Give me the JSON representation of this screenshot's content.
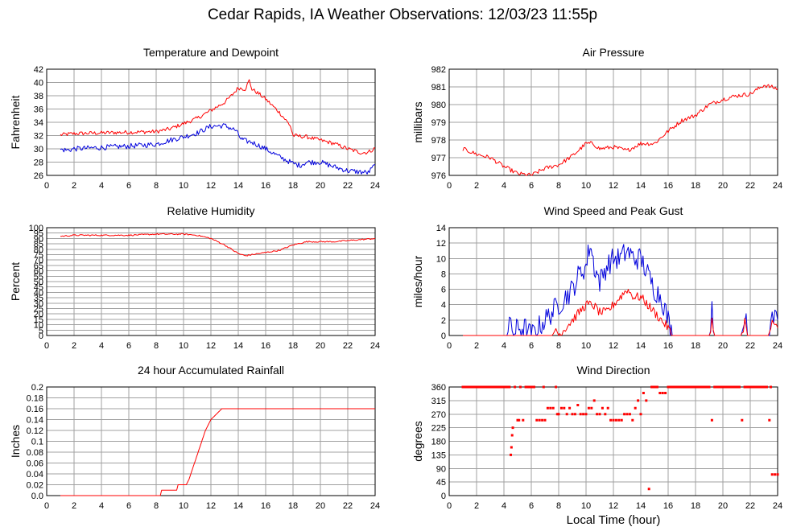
{
  "page": {
    "title": "Cedar Rapids, IA Weather Observations: 12/03/23 11:55p",
    "xlabel": "Local Time (hour)"
  },
  "colors": {
    "red": "#ff0000",
    "blue": "#0000dd",
    "grid": "#a0a0a0"
  },
  "chart_data": [
    {
      "id": "temp",
      "type": "line",
      "title": "Temperature and Dewpoint",
      "ylabel": "Fahrenheit",
      "ylim": [
        26,
        42
      ],
      "yticks": [
        26,
        28,
        30,
        32,
        34,
        36,
        38,
        40,
        42
      ],
      "xlim": [
        0,
        24
      ],
      "xticks": [
        0,
        2,
        4,
        6,
        8,
        10,
        12,
        14,
        16,
        18,
        20,
        22,
        24
      ],
      "grid": true,
      "series": [
        {
          "color": "#ff0000",
          "noise": 0.3,
          "x": [
            1,
            2,
            4,
            6,
            8,
            9,
            10,
            11,
            12,
            13,
            13.5,
            14,
            14.5,
            14.8,
            15,
            15.5,
            16,
            17,
            17.8,
            18,
            19,
            20,
            21,
            22,
            23,
            23.5,
            24
          ],
          "y": [
            32.1,
            32.3,
            32.4,
            32.5,
            32.6,
            33.0,
            33.8,
            34.6,
            35.8,
            37.0,
            38.0,
            39.2,
            39.0,
            40.3,
            39.0,
            38.3,
            37.5,
            35.5,
            33.5,
            32.0,
            31.8,
            31.3,
            30.8,
            30.0,
            29.4,
            29.5,
            30.1
          ]
        },
        {
          "color": "#0000dd",
          "noise": 0.4,
          "x": [
            1,
            1.5,
            2,
            4,
            6,
            8,
            9,
            10,
            11,
            12,
            13,
            13.8,
            14.2,
            14.5,
            15,
            16,
            17,
            18,
            18.5,
            19,
            20,
            21,
            22,
            23,
            23.5,
            24
          ],
          "y": [
            29.9,
            29.8,
            30.0,
            30.2,
            30.4,
            30.7,
            31.3,
            31.8,
            32.4,
            33.4,
            33.5,
            32.8,
            31.5,
            31.2,
            31.0,
            30.0,
            28.8,
            27.8,
            27.5,
            28.0,
            28.0,
            27.3,
            26.7,
            26.5,
            26.4,
            27.6
          ]
        }
      ]
    },
    {
      "id": "pressure",
      "type": "line",
      "title": "Air Pressure",
      "ylabel": "millibars",
      "ylim": [
        976,
        982
      ],
      "yticks": [
        976,
        977,
        978,
        979,
        980,
        981,
        982
      ],
      "xlim": [
        0,
        24
      ],
      "xticks": [
        0,
        2,
        4,
        6,
        8,
        10,
        12,
        14,
        16,
        18,
        20,
        22,
        24
      ],
      "grid": true,
      "series": [
        {
          "color": "#ff0000",
          "noise": 0.12,
          "x": [
            1,
            2,
            3,
            4,
            5,
            6,
            7,
            8,
            9,
            10,
            10.5,
            11,
            12,
            13,
            14,
            15,
            16,
            17,
            18,
            19,
            20,
            21,
            22,
            23,
            23.5,
            24
          ],
          "y": [
            977.5,
            977.2,
            977.0,
            976.5,
            976.1,
            976.0,
            976.4,
            976.6,
            977.1,
            977.8,
            977.8,
            977.5,
            977.6,
            977.4,
            977.8,
            977.8,
            978.5,
            979.1,
            979.4,
            980.0,
            980.3,
            980.5,
            980.6,
            981.1,
            981.0,
            980.9
          ]
        }
      ]
    },
    {
      "id": "rh",
      "type": "line",
      "title": "Relative Humidity",
      "ylabel": "Percent",
      "ylim": [
        0,
        100
      ],
      "yticks": [
        0,
        5,
        10,
        15,
        20,
        25,
        30,
        35,
        40,
        45,
        50,
        55,
        60,
        65,
        70,
        75,
        80,
        85,
        90,
        95,
        100
      ],
      "xlim": [
        0,
        24
      ],
      "xticks": [
        0,
        2,
        4,
        6,
        8,
        10,
        12,
        14,
        16,
        18,
        20,
        22,
        24
      ],
      "grid": true,
      "series": [
        {
          "color": "#ff0000",
          "noise": 0.6,
          "x": [
            1,
            2,
            4,
            6,
            8,
            9,
            10,
            11,
            12,
            13,
            14,
            14.5,
            15,
            16,
            17,
            18,
            19,
            20,
            21,
            22,
            23,
            24
          ],
          "y": [
            92,
            93,
            93,
            93,
            94,
            94,
            94,
            93,
            90,
            84,
            76,
            74,
            75,
            77,
            79,
            84,
            87,
            87,
            87,
            88,
            89,
            90
          ]
        }
      ]
    },
    {
      "id": "wind",
      "type": "line",
      "title": "Wind Speed and Peak Gust",
      "ylabel": "miles/hour",
      "ylim": [
        0,
        14
      ],
      "yticks": [
        0,
        2,
        4,
        6,
        8,
        10,
        12,
        14
      ],
      "xlim": [
        0,
        24
      ],
      "xticks": [
        0,
        2,
        4,
        6,
        8,
        10,
        12,
        14,
        16,
        18,
        20,
        22,
        24
      ],
      "grid": true,
      "series": [
        {
          "color": "#0000dd",
          "noise": 1.5,
          "x": [
            1,
            4.3,
            4.5,
            4.7,
            5,
            5.5,
            6,
            6.5,
            7,
            7.5,
            8,
            8.5,
            9,
            9.5,
            10,
            10.3,
            10.6,
            11,
            11.5,
            12,
            12.5,
            13,
            13.5,
            14,
            14.5,
            15,
            15.5,
            16,
            16.3,
            16.6,
            19.0,
            19.2,
            19.4,
            21.4,
            21.6,
            21.8,
            23.4,
            23.6,
            23.8,
            24
          ],
          "y": [
            0,
            0,
            2,
            0,
            1,
            1,
            0,
            1,
            2,
            3,
            4,
            5,
            6,
            8,
            9,
            12,
            9,
            7,
            9,
            10,
            10,
            11,
            10,
            10,
            8,
            6,
            5,
            2,
            0,
            0,
            0,
            4,
            0,
            0,
            3,
            0,
            0,
            4,
            2,
            2
          ]
        },
        {
          "color": "#ff0000",
          "noise": 0.6,
          "x": [
            1,
            7.6,
            7.8,
            8.0,
            8.5,
            9,
            9.5,
            10,
            10.5,
            11,
            11.5,
            12,
            12.5,
            13,
            13.5,
            14,
            14.5,
            15,
            15.5,
            16,
            16.3,
            19.0,
            19.2,
            19.4,
            21.4,
            21.6,
            21.8,
            23.4,
            23.6,
            23.8,
            24
          ],
          "y": [
            0,
            0,
            1,
            0,
            1,
            2,
            3,
            4,
            4,
            3,
            3,
            4,
            5,
            6,
            5,
            5,
            4,
            3,
            2,
            1,
            0,
            0,
            2,
            0,
            0,
            2,
            0,
            0,
            2,
            1,
            1
          ]
        }
      ]
    },
    {
      "id": "rain",
      "type": "line",
      "title": "24 hour Accumulated Rainfall",
      "ylabel": "Inches",
      "ylim": [
        0,
        0.2
      ],
      "yticks": [
        0,
        0.02,
        0.04,
        0.06,
        0.08,
        0.1,
        0.12,
        0.14,
        0.16,
        0.18,
        0.2
      ],
      "ytick_labels": [
        "0.0",
        "0.02",
        "0.04",
        "0.06",
        "0.08",
        "0.1",
        "0.12",
        "0.14",
        "0.16",
        "0.18",
        "0.2"
      ],
      "xlim": [
        0,
        24
      ],
      "xticks": [
        0,
        2,
        4,
        6,
        8,
        10,
        12,
        14,
        16,
        18,
        20,
        22,
        24
      ],
      "grid": true,
      "series": [
        {
          "color": "#ff0000",
          "noise": 0,
          "x": [
            1,
            8.3,
            8.4,
            9.5,
            9.6,
            10.2,
            10.4,
            10.8,
            11.2,
            11.6,
            12.0,
            12.4,
            12.8,
            13.0,
            24
          ],
          "y": [
            0,
            0,
            0.01,
            0.01,
            0.02,
            0.02,
            0.03,
            0.06,
            0.09,
            0.12,
            0.14,
            0.15,
            0.16,
            0.16,
            0.16
          ]
        }
      ]
    },
    {
      "id": "dir",
      "type": "scatter",
      "title": "Wind Direction",
      "ylabel": "degrees",
      "ylim": [
        0,
        360
      ],
      "yticks": [
        0,
        45,
        90,
        135,
        180,
        225,
        270,
        315,
        360
      ],
      "xlim": [
        0,
        24
      ],
      "xticks": [
        0,
        2,
        4,
        6,
        8,
        10,
        12,
        14,
        16,
        18,
        20,
        22,
        24
      ],
      "grid": true,
      "xlabel_key": "page.xlabel",
      "series": [
        {
          "color": "#ff0000",
          "x": [
            1.0,
            1.2,
            1.4,
            1.6,
            1.8,
            2.0,
            2.2,
            2.4,
            2.6,
            2.8,
            3.0,
            3.2,
            3.4,
            3.6,
            3.8,
            4.0,
            4.2,
            4.4,
            4.5,
            4.55,
            4.6,
            4.65,
            4.8,
            5.0,
            5.1,
            5.2,
            5.4,
            5.6,
            5.9,
            6.0,
            6.2,
            6.4,
            6.6,
            6.8,
            6.9,
            7.0,
            7.2,
            7.4,
            7.6,
            7.8,
            7.9,
            8.0,
            8.2,
            8.4,
            8.6,
            8.8,
            9.0,
            9.2,
            9.4,
            9.6,
            9.8,
            10.0,
            10.2,
            10.4,
            10.6,
            10.8,
            11.0,
            11.2,
            11.4,
            11.6,
            11.8,
            12.0,
            12.2,
            12.4,
            12.6,
            12.8,
            13.0,
            13.2,
            13.4,
            13.6,
            13.8,
            14.0,
            14.2,
            14.4,
            14.6,
            14.8,
            15.0,
            15.2,
            15.4,
            15.6,
            15.8,
            16.0,
            16.2,
            16.6,
            16.8,
            17.0,
            17.2,
            17.4,
            17.6,
            17.8,
            18.0,
            18.2,
            18.4,
            18.6,
            18.8,
            19.0,
            19.2,
            19.4,
            19.6,
            19.8,
            20.0,
            20.2,
            20.4,
            20.6,
            20.8,
            21.0,
            21.2,
            21.4,
            21.6,
            21.8,
            22.0,
            22.2,
            22.4,
            22.6,
            22.8,
            23.0,
            23.2,
            23.4,
            23.5,
            23.6,
            23.8,
            24.0
          ],
          "y": [
            360,
            360,
            360,
            360,
            360,
            360,
            360,
            360,
            360,
            360,
            360,
            360,
            360,
            360,
            360,
            360,
            360,
            360,
            135,
            160,
            200,
            225,
            360,
            250,
            250,
            360,
            250,
            360,
            360,
            360,
            360,
            250,
            250,
            250,
            360,
            250,
            290,
            290,
            290,
            360,
            270,
            270,
            290,
            290,
            270,
            290,
            270,
            270,
            300,
            270,
            270,
            270,
            290,
            290,
            315,
            270,
            270,
            290,
            270,
            290,
            250,
            250,
            250,
            250,
            250,
            270,
            270,
            270,
            250,
            290,
            315,
            270,
            340,
            315,
            22,
            360,
            360,
            360,
            340,
            340,
            340,
            360,
            360,
            360,
            360,
            360,
            360,
            360,
            360,
            360,
            360,
            360,
            360,
            360,
            360,
            360,
            250,
            360,
            360,
            360,
            360,
            360,
            360,
            360,
            360,
            360,
            360,
            250,
            360,
            360,
            360,
            360,
            360,
            360,
            360,
            360,
            360,
            250,
            360,
            70,
            70,
            70
          ]
        }
      ]
    }
  ]
}
